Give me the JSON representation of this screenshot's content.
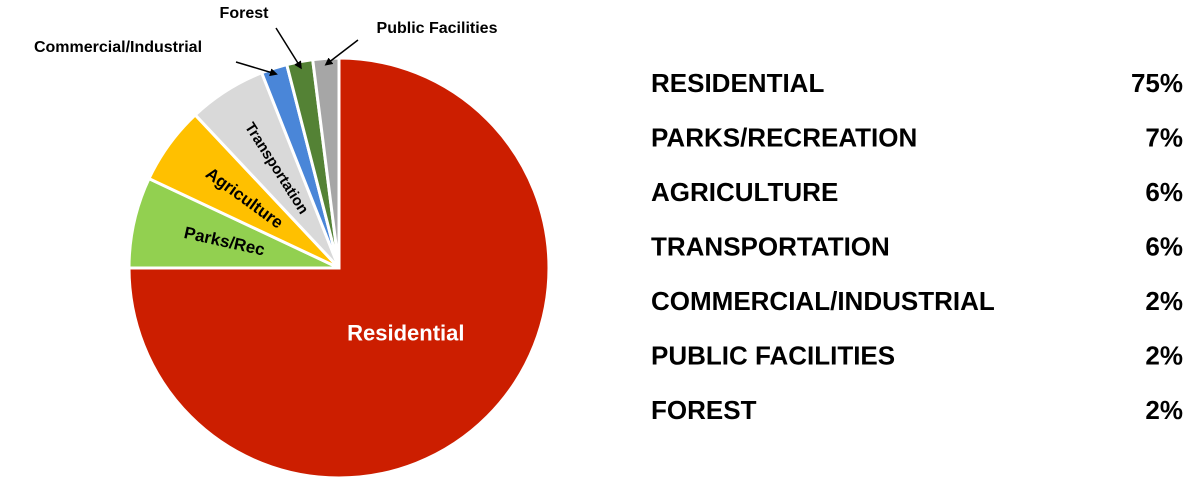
{
  "chart_data": {
    "type": "pie",
    "slices": [
      {
        "label": "Residential",
        "value": 75,
        "color": "#cc1e00",
        "slice_label": "Residential",
        "label_color": "#ffffff",
        "label_size": 22
      },
      {
        "label": "Parks/Rec",
        "value": 7,
        "color": "#92d050",
        "slice_label": "Parks/Rec",
        "label_color": "#000000",
        "label_size": 17
      },
      {
        "label": "Agriculture",
        "value": 6,
        "color": "#ffc000",
        "slice_label": "Agriculture",
        "label_color": "#000000",
        "label_size": 17
      },
      {
        "label": "Transportation",
        "value": 6,
        "color": "#d9d9d9",
        "slice_label": "Transportation",
        "label_color": "#000000",
        "label_size": 15
      },
      {
        "label": "Commercial/Industrial",
        "value": 2,
        "color": "#4a86d8",
        "slice_label": "",
        "label_color": "#000000",
        "label_size": 15
      },
      {
        "label": "Forest",
        "value": 2,
        "color": "#548235",
        "slice_label": "",
        "label_color": "#000000",
        "label_size": 15
      },
      {
        "label": "Public Facilities",
        "value": 2,
        "color": "#a6a6a6",
        "slice_label": "",
        "label_color": "#000000",
        "label_size": 15
      }
    ],
    "callouts": [
      {
        "slice_index": 4,
        "text": "Commercial/Industrial"
      },
      {
        "slice_index": 5,
        "text": "Forest"
      },
      {
        "slice_index": 6,
        "text": "Public Facilities"
      }
    ],
    "table": [
      {
        "label": "RESIDENTIAL",
        "value": "75%"
      },
      {
        "label": "PARKS/RECREATION",
        "value": "7%"
      },
      {
        "label": "AGRICULTURE",
        "value": "6%"
      },
      {
        "label": "TRANSPORTATION",
        "value": "6%"
      },
      {
        "label": "COMMERCIAL/INDUSTRIAL",
        "value": "2%"
      },
      {
        "label": "PUBLIC FACILITIES",
        "value": "2%"
      },
      {
        "label": "FOREST",
        "value": "2%"
      }
    ]
  }
}
